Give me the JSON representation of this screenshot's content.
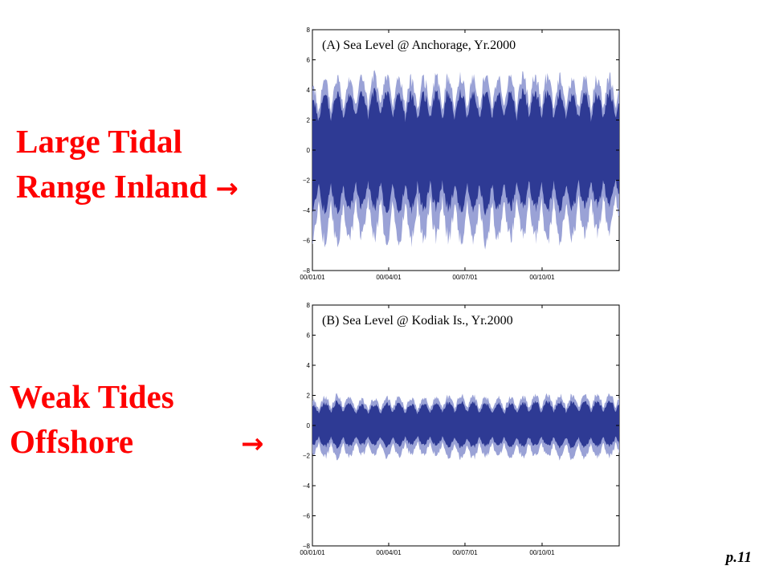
{
  "slide": {
    "callout_top": {
      "line1": "Large Tidal",
      "line2": "Range Inland",
      "arrow": "→"
    },
    "callout_bottom": {
      "line1": "Weak Tides",
      "line2": "Offshore",
      "arrow": "→"
    },
    "page_number": "p.11"
  },
  "colors": {
    "callout_text": "#ff0000",
    "series_dark": "#2e3a94",
    "series_light": "#9aa2d6",
    "axis": "#000000"
  },
  "chart_data": [
    {
      "type": "area",
      "title": "(A) Sea Level @ Anchorage, Yr.2000",
      "xlabel": "",
      "ylabel": "",
      "x_ticks": [
        "00/01/01",
        "00/04/01",
        "00/07/01",
        "00/10/01"
      ],
      "x_tick_days": [
        0,
        91,
        182,
        274
      ],
      "xlim_days": [
        0,
        366
      ],
      "ylim": [
        -8,
        8
      ],
      "y_ticks": [
        -8,
        -6,
        -4,
        -2,
        0,
        2,
        4,
        6,
        8
      ],
      "grid": false,
      "legend": "none",
      "series": [
        {
          "role": "envelope",
          "upper_peak": [
            4.3,
            4.8,
            4.9,
            4.9,
            4.6,
            4.8,
            4.8,
            4.9,
            4.9,
            4.9,
            4.7,
            4.7,
            4.9
          ],
          "lower_trough": [
            -5.8,
            -6.2,
            -5.6,
            -6.0,
            -5.9,
            -5.7,
            -6.0,
            -6.1,
            -5.6,
            -6.0,
            -5.8,
            -5.5,
            -5.2
          ]
        }
      ]
    },
    {
      "type": "area",
      "title": "(B) Sea Level @ Kodiak Is., Yr.2000",
      "xlabel": "",
      "ylabel": "",
      "x_ticks": [
        "00/01/01",
        "00/04/01",
        "00/07/01",
        "00/10/01"
      ],
      "x_tick_days": [
        0,
        91,
        182,
        274
      ],
      "xlim_days": [
        0,
        366
      ],
      "ylim": [
        -8,
        8
      ],
      "y_ticks": [
        -8,
        -6,
        -4,
        -2,
        0,
        2,
        4,
        6,
        8
      ],
      "grid": false,
      "legend": "none",
      "series": [
        {
          "role": "envelope",
          "upper_peak": [
            1.8,
            2.0,
            1.7,
            1.9,
            1.8,
            1.9,
            2.0,
            1.8,
            1.9,
            2.0,
            2.0,
            2.0,
            2.1
          ],
          "lower_trough": [
            -2.0,
            -2.2,
            -1.9,
            -2.1,
            -1.9,
            -2.0,
            -2.2,
            -2.0,
            -2.1,
            -2.0,
            -2.2,
            -2.1,
            -2.0
          ]
        }
      ]
    }
  ]
}
